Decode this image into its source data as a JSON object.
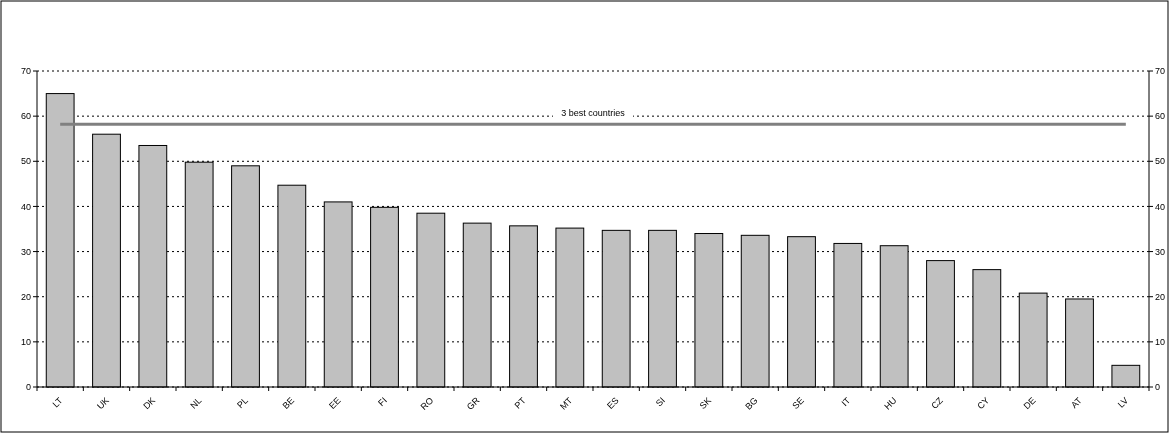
{
  "chart_data": {
    "type": "bar",
    "categories": [
      "LT",
      "UK",
      "DK",
      "NL",
      "PL",
      "BE",
      "EE",
      "FI",
      "RO",
      "GR",
      "PT",
      "MT",
      "ES",
      "SI",
      "SK",
      "BG",
      "SE",
      "IT",
      "HU",
      "CZ",
      "CY",
      "DE",
      "AT",
      "LV"
    ],
    "values": [
      65,
      56,
      53.5,
      49.8,
      49,
      44.7,
      41,
      39.8,
      38.5,
      36.3,
      35.7,
      35.2,
      34.7,
      34.7,
      34,
      33.6,
      33.3,
      31.8,
      31.3,
      28,
      26,
      20.8,
      19.5,
      4.8
    ],
    "color": "#c0c0c0",
    "ylim": [
      0,
      70
    ],
    "yticks": [
      0,
      10,
      20,
      30,
      40,
      50,
      60,
      70
    ],
    "y2lim": [
      0,
      70
    ],
    "y2ticks": [
      0,
      10,
      20,
      30,
      40,
      50,
      60,
      70
    ],
    "grid": "y",
    "ref_lines": [
      {
        "axis": "y",
        "value": 58.2,
        "label": "3 best countries",
        "color": "#808080"
      }
    ]
  }
}
